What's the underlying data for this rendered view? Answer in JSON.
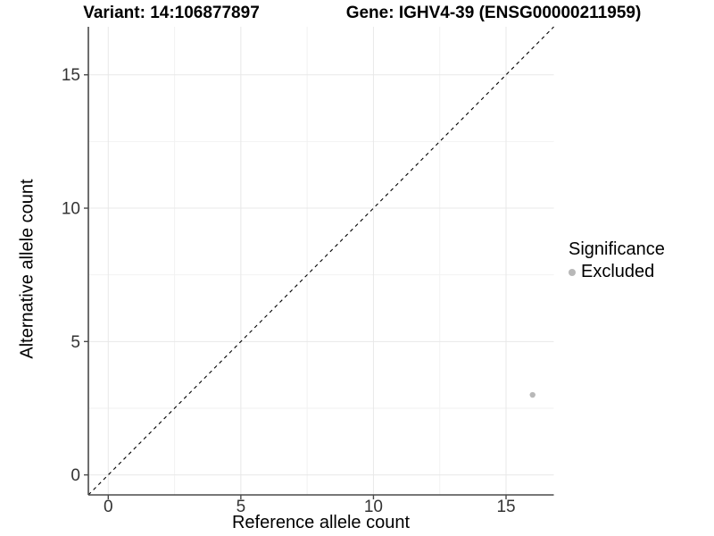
{
  "header": {
    "variant_title": "Variant: 14:106877897",
    "gene_title": "Gene: IGHV4-39 (ENSG00000211959)"
  },
  "legend": {
    "title": "Significance",
    "items": [
      {
        "label": "Excluded",
        "color": "#b8b8b8"
      }
    ]
  },
  "colors": {
    "axis_line": "#4a4a4a",
    "grid_major": "#e8e8e8",
    "grid_minor": "#f2f2f2",
    "tick_label": "#333333",
    "reference_line": "#000000"
  },
  "chart_data": {
    "type": "scatter",
    "title_left": "Variant: 14:106877897",
    "title_right": "Gene: IGHV4-39 (ENSG00000211959)",
    "xlabel": "Reference allele count",
    "ylabel": "Alternative allele count",
    "xlim": [
      -0.75,
      16.8
    ],
    "ylim": [
      -0.75,
      16.8
    ],
    "x_ticks": [
      0,
      5,
      10,
      15
    ],
    "y_ticks": [
      0,
      5,
      10,
      15
    ],
    "x_minor_ticks": [
      2.5,
      7.5,
      12.5
    ],
    "y_minor_ticks": [
      2.5,
      7.5,
      12.5
    ],
    "grid": true,
    "legend_position": "right",
    "series": [
      {
        "name": "Excluded",
        "color": "#b8b8b8",
        "point_radius": 3.2,
        "points": [
          [
            16,
            3
          ]
        ]
      }
    ],
    "reference_line": {
      "slope": 1,
      "intercept": 0,
      "style": "dashed"
    }
  }
}
